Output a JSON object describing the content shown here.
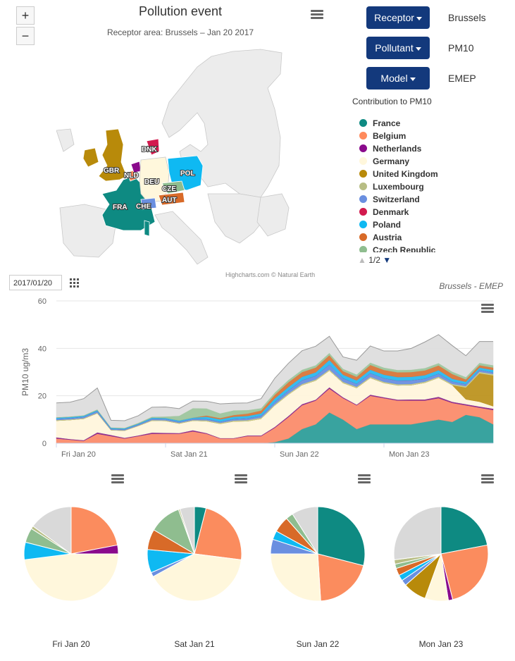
{
  "map": {
    "title": "Pollution event",
    "subtitle": "Receptor area: Brussels – Jan 20 2017",
    "zoom_in": "+",
    "zoom_out": "−",
    "credits": "Highcharts.com © Natural Earth",
    "country_labels": [
      "GBR",
      "DNK",
      "NLD",
      "DEU",
      "POL",
      "CZE",
      "FRA",
      "CHE",
      "AUT"
    ]
  },
  "controls": {
    "receptor": {
      "label": "Receptor",
      "value": "Brussels"
    },
    "pollutant": {
      "label": "Pollutant",
      "value": "PM10"
    },
    "model": {
      "label": "Model",
      "value": "EMEP"
    }
  },
  "legend": {
    "title": "Contribution to PM10",
    "items": [
      {
        "name": "France",
        "color": "#0e8a82"
      },
      {
        "name": "Belgium",
        "color": "#ff8a5c"
      },
      {
        "name": "Netherlands",
        "color": "#8a0a8c"
      },
      {
        "name": "Germany",
        "color": "#fff7dc"
      },
      {
        "name": "United Kingdom",
        "color": "#b88a0a"
      },
      {
        "name": "Luxembourg",
        "color": "#b7bd84"
      },
      {
        "name": "Switzerland",
        "color": "#6a8fe0"
      },
      {
        "name": "Denmark",
        "color": "#d21a4e"
      },
      {
        "name": "Poland",
        "color": "#0fb9f2"
      },
      {
        "name": "Austria",
        "color": "#d86a28"
      },
      {
        "name": "Czech Republic",
        "color": "#8fbd8f"
      }
    ],
    "pager": "1/2"
  },
  "date_input": "2017/01/20",
  "chart_data": [
    {
      "type": "area",
      "title": "",
      "subtitle": "Brussels - EMEP",
      "ylabel": "PM10 ug/m3",
      "ylim": [
        0,
        60
      ],
      "yticks": [
        0,
        20,
        40,
        60
      ],
      "xlabels": [
        "Fri Jan 20",
        "Sat Jan 21",
        "Sun Jan 22",
        "Mon Jan 23"
      ],
      "stacked": true,
      "x": [
        0,
        3,
        6,
        9,
        12,
        15,
        18,
        21,
        24,
        27,
        30,
        33,
        36,
        39,
        42,
        45,
        48,
        51,
        54,
        57,
        60,
        63,
        66,
        69,
        72,
        75,
        78,
        81,
        84,
        87,
        90,
        93,
        96
      ],
      "series": [
        {
          "name": "France",
          "color": "#2e9e9a",
          "values": [
            0,
            0,
            0,
            0,
            0,
            0,
            0,
            0,
            0,
            0,
            0,
            0,
            0,
            0,
            0,
            0,
            0.5,
            2,
            6,
            8,
            13,
            10,
            6,
            8,
            8,
            8,
            8,
            9,
            10,
            9,
            12,
            11,
            8
          ]
        },
        {
          "name": "Belgium",
          "color": "#fb8c6c",
          "values": [
            2,
            1.5,
            1,
            4,
            3,
            2,
            3,
            4,
            4,
            4,
            5,
            4,
            2,
            2,
            3,
            3,
            6,
            9,
            10,
            10,
            10,
            9,
            10,
            12,
            11,
            10,
            10,
            9,
            9,
            8,
            4,
            4,
            6
          ]
        },
        {
          "name": "Netherlands",
          "color": "#8a2a8e",
          "values": [
            0.5,
            0.3,
            0.3,
            0.6,
            0.5,
            0.3,
            0.3,
            0.5,
            0.4,
            0.3,
            0.5,
            0.3,
            0.2,
            0.2,
            0.3,
            0.3,
            0.4,
            0.5,
            0.5,
            0.4,
            0.6,
            0.4,
            0.3,
            0.5,
            0.4,
            0.4,
            0.5,
            0.5,
            0.6,
            0.5,
            0.5,
            0.5,
            0.6
          ]
        },
        {
          "name": "Germany",
          "color": "#fff5dc",
          "values": [
            7,
            8,
            9,
            8,
            2,
            3,
            4,
            5,
            5,
            4,
            4,
            5,
            6,
            7,
            6,
            7,
            9,
            9,
            8,
            8,
            7,
            6,
            7,
            7,
            6,
            6,
            6,
            7,
            8,
            7,
            2,
            2,
            1
          ]
        },
        {
          "name": "United Kingdom",
          "color": "#bd9420",
          "values": [
            0,
            0,
            0,
            0,
            0,
            0,
            0,
            0,
            0,
            0,
            0,
            0,
            0,
            0,
            0,
            0,
            0,
            0,
            0,
            0,
            0,
            0,
            0,
            0,
            0,
            0,
            0,
            0,
            0,
            0,
            5,
            12,
            13
          ]
        },
        {
          "name": "Luxembourg",
          "color": "#c4c88c",
          "values": [
            0.3,
            0.3,
            0.3,
            0.3,
            0.2,
            0.2,
            0.2,
            0.3,
            0.3,
            0.3,
            0.3,
            0.4,
            0.4,
            0.4,
            0.5,
            0.5,
            0.5,
            0.5,
            0.5,
            0.5,
            0.5,
            0.5,
            0.5,
            0.5,
            0.5,
            0.5,
            0.5,
            0.5,
            0.5,
            0.5,
            0.6,
            0.6,
            0.6
          ]
        },
        {
          "name": "Switzerland",
          "color": "#6a8fe0",
          "values": [
            0.5,
            0.5,
            0.5,
            0.6,
            0.4,
            0.4,
            0.4,
            0.5,
            0.5,
            0.5,
            0.5,
            0.5,
            0.5,
            0.6,
            0.7,
            0.8,
            1,
            1.2,
            1.5,
            1.5,
            2,
            1.5,
            1.2,
            1.5,
            1.5,
            1.5,
            1.5,
            1.2,
            1.2,
            1,
            0.8,
            0.8,
            0.7
          ]
        },
        {
          "name": "Denmark",
          "color": "#d21a4e",
          "values": [
            0,
            0,
            0,
            0,
            0,
            0,
            0,
            0,
            0,
            0,
            0,
            0,
            0,
            0,
            0,
            0,
            0,
            0,
            0,
            0,
            0,
            0,
            0,
            0,
            0,
            0,
            0,
            0,
            0,
            0,
            0,
            0,
            0
          ]
        },
        {
          "name": "Poland",
          "color": "#29b8f0",
          "values": [
            0.5,
            0.5,
            0.5,
            0.5,
            0.4,
            0.4,
            0.4,
            0.5,
            0.5,
            0.5,
            0.5,
            1,
            1,
            1,
            1,
            1,
            1.5,
            1.5,
            1.5,
            1.5,
            2,
            1.5,
            1.5,
            1.5,
            1.5,
            1.5,
            1.5,
            1.5,
            1.5,
            1.2,
            1,
            1,
            1
          ]
        },
        {
          "name": "Austria",
          "color": "#d8763a",
          "values": [
            0,
            0,
            0,
            0,
            0,
            0,
            0,
            0,
            0,
            0,
            0,
            0.5,
            0.5,
            0.7,
            1,
            1.2,
            1.5,
            2,
            2,
            2,
            2,
            1.5,
            1.5,
            2,
            2,
            2,
            2,
            2,
            2,
            2,
            1,
            1,
            1
          ]
        },
        {
          "name": "Czech Republic",
          "color": "#9dc59d",
          "values": [
            0.2,
            0.2,
            0.2,
            0.3,
            0.2,
            0.2,
            0.3,
            0.4,
            0.6,
            2,
            4,
            3,
            2,
            2,
            1.5,
            1,
            1,
            1,
            1,
            1,
            1,
            1,
            1,
            1,
            1,
            1,
            1,
            1,
            1,
            1,
            1,
            1,
            1
          ]
        },
        {
          "name": "Rest",
          "color": "#dddddd",
          "values": [
            6,
            6,
            7,
            9,
            3,
            3,
            3,
            4,
            4,
            3,
            3,
            3,
            4,
            3,
            3,
            4,
            6,
            7,
            8,
            8,
            7,
            5,
            6,
            7,
            7,
            8,
            9,
            11,
            12,
            11,
            9,
            9,
            10
          ]
        }
      ]
    },
    {
      "type": "pie",
      "label": "Fri Jan 20",
      "slices": [
        {
          "name": "Belgium",
          "value": 22,
          "color": "#fb8c5e"
        },
        {
          "name": "Netherlands",
          "value": 3,
          "color": "#8a0a8c"
        },
        {
          "name": "Germany",
          "value": 48,
          "color": "#fff7dc"
        },
        {
          "name": "Poland",
          "value": 6,
          "color": "#0fb9f2"
        },
        {
          "name": "Czech Republic",
          "value": 5,
          "color": "#8fbd8f"
        },
        {
          "name": "Luxembourg",
          "value": 1,
          "color": "#b7bd84"
        },
        {
          "name": "Rest",
          "value": 15,
          "color": "#d9d9d9"
        }
      ]
    },
    {
      "type": "pie",
      "label": "Sat Jan 21",
      "slices": [
        {
          "name": "France",
          "value": 4,
          "color": "#0e8a82"
        },
        {
          "name": "Belgium",
          "value": 23,
          "color": "#fb8c5e"
        },
        {
          "name": "Germany",
          "value": 40,
          "color": "#fff7dc"
        },
        {
          "name": "Switzerland",
          "value": 1.5,
          "color": "#6a8fe0"
        },
        {
          "name": "Poland",
          "value": 8,
          "color": "#0fb9f2"
        },
        {
          "name": "Austria",
          "value": 7,
          "color": "#d86a28"
        },
        {
          "name": "Czech Republic",
          "value": 11,
          "color": "#8fbd8f"
        },
        {
          "name": "Luxembourg",
          "value": 0.5,
          "color": "#b7bd84"
        },
        {
          "name": "Rest",
          "value": 5,
          "color": "#d9d9d9"
        }
      ]
    },
    {
      "type": "pie",
      "label": "Sun Jan 22",
      "slices": [
        {
          "name": "France",
          "value": 29,
          "color": "#0e8a82"
        },
        {
          "name": "Belgium",
          "value": 20,
          "color": "#fb8c5e"
        },
        {
          "name": "Germany",
          "value": 26,
          "color": "#fff7dc"
        },
        {
          "name": "Switzerland",
          "value": 5,
          "color": "#6a8fe0"
        },
        {
          "name": "Poland",
          "value": 3,
          "color": "#0fb9f2"
        },
        {
          "name": "Austria",
          "value": 5.5,
          "color": "#d86a28"
        },
        {
          "name": "Czech Republic",
          "value": 2.5,
          "color": "#8fbd8f"
        },
        {
          "name": "Rest",
          "value": 9,
          "color": "#d9d9d9"
        }
      ]
    },
    {
      "type": "pie",
      "label": "Mon Jan 23",
      "slices": [
        {
          "name": "France",
          "value": 22,
          "color": "#0e8a82"
        },
        {
          "name": "Belgium",
          "value": 24,
          "color": "#fb8c5e"
        },
        {
          "name": "Netherlands",
          "value": 1.5,
          "color": "#8a0a8c"
        },
        {
          "name": "Germany",
          "value": 8,
          "color": "#fff7dc"
        },
        {
          "name": "United Kingdom",
          "value": 8,
          "color": "#b88a0a"
        },
        {
          "name": "Switzerland",
          "value": 2,
          "color": "#6a8fe0"
        },
        {
          "name": "Poland",
          "value": 2,
          "color": "#0fb9f2"
        },
        {
          "name": "Austria",
          "value": 2.5,
          "color": "#d86a28"
        },
        {
          "name": "Czech Republic",
          "value": 1.5,
          "color": "#8fbd8f"
        },
        {
          "name": "Luxembourg",
          "value": 1.5,
          "color": "#b7bd84"
        },
        {
          "name": "Rest",
          "value": 27,
          "color": "#d9d9d9"
        }
      ]
    }
  ]
}
